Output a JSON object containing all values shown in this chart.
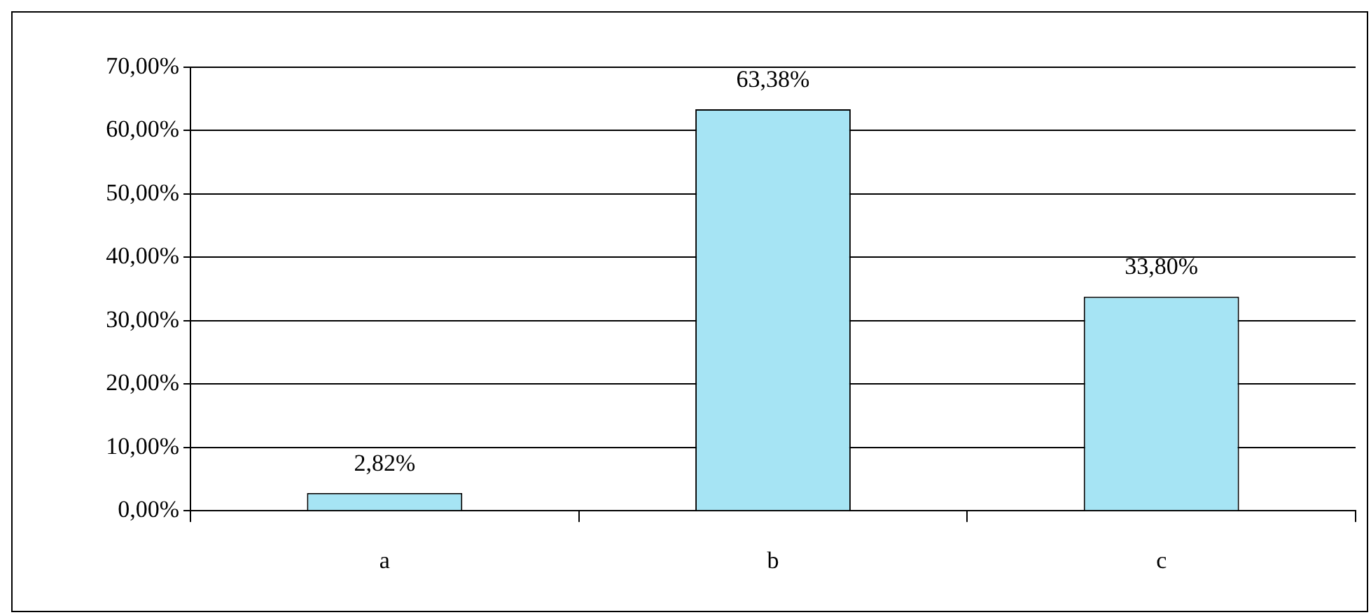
{
  "chart_data": {
    "type": "bar",
    "categories": [
      "a",
      "b",
      "c"
    ],
    "values": [
      2.82,
      63.38,
      33.8
    ],
    "value_labels": [
      "2,82%",
      "63,38%",
      "33,80%"
    ],
    "color": "#a6e4f4",
    "ylim": [
      0,
      70
    ],
    "yticks": [
      {
        "value": 0,
        "label": "0,00%"
      },
      {
        "value": 10,
        "label": "10,00%"
      },
      {
        "value": 20,
        "label": "20,00%"
      },
      {
        "value": 30,
        "label": "30,00%"
      },
      {
        "value": 40,
        "label": "40,00%"
      },
      {
        "value": 50,
        "label": "50,00%"
      },
      {
        "value": 60,
        "label": "60,00%"
      },
      {
        "value": 70,
        "label": "70,00%"
      }
    ],
    "grid": "y",
    "legend": false
  }
}
